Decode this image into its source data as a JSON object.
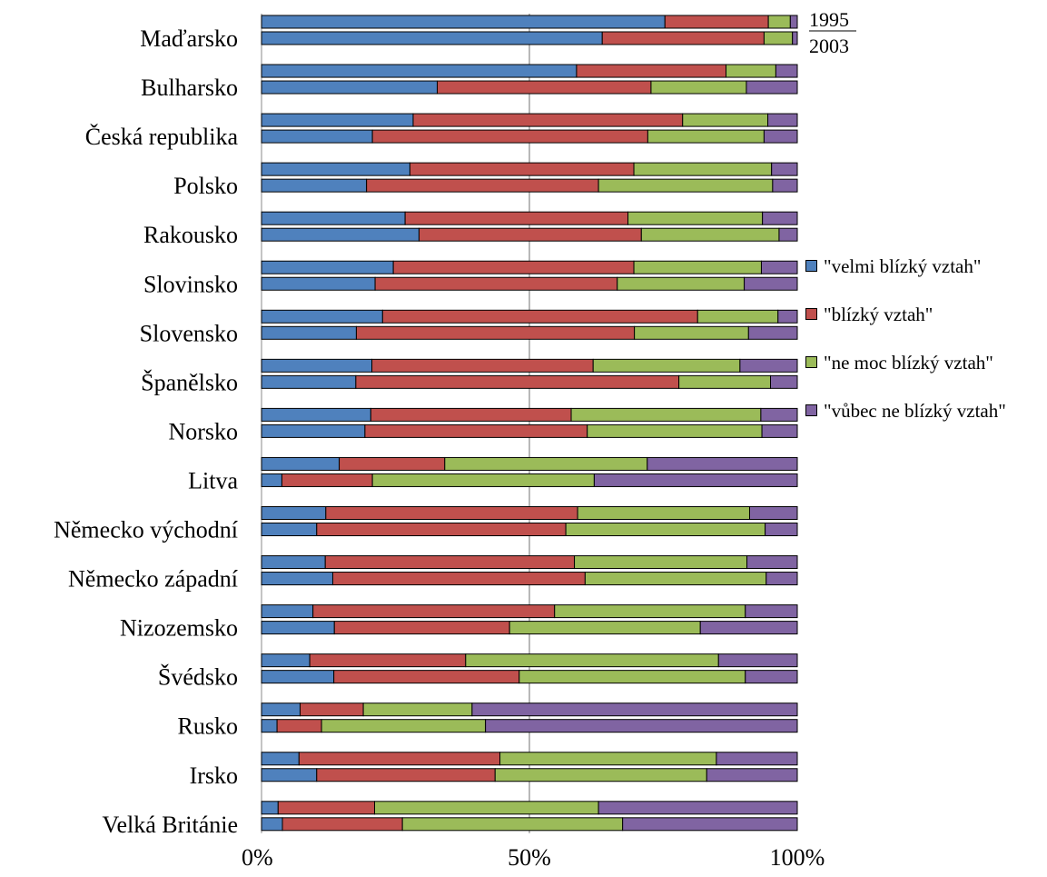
{
  "chart_data": {
    "type": "bar",
    "orientation": "horizontal",
    "stacked": "100%",
    "year_labels": [
      "1995",
      "2003"
    ],
    "x_ticks": [
      "0%",
      "50%",
      "100%"
    ],
    "xlim": [
      0,
      100
    ],
    "grid": "vertical line at 50%",
    "legend_placement": "right",
    "colors": {
      "velmi": "#4f81bd",
      "blizky": "#c0504d",
      "nemoc": "#9bbb59",
      "vubec": "#8064a2"
    },
    "series": [
      {
        "name": "\"velmi blízký vztah\"",
        "color": "#4f81bd"
      },
      {
        "name": "\"blízký vztah\"",
        "color": "#c0504d"
      },
      {
        "name": "\"ne moc blízký vztah\"",
        "color": "#9bbb59"
      },
      {
        "name": "\"vůbec ne blízký vztah\"",
        "color": "#8064a2"
      }
    ],
    "categories": [
      {
        "name": "Maďarsko",
        "y1995": [
          75.3,
          19.3,
          4.1,
          1.3
        ],
        "y2003": [
          63.6,
          30.2,
          5.3,
          0.9
        ]
      },
      {
        "name": "Bulharsko",
        "y1995": [
          58.8,
          27.9,
          9.3,
          4.0
        ],
        "y2003": [
          32.8,
          39.9,
          17.8,
          9.5
        ]
      },
      {
        "name": "Česká republika",
        "y1995": [
          28.3,
          50.3,
          15.9,
          5.5
        ],
        "y2003": [
          20.7,
          51.4,
          21.7,
          6.2
        ]
      },
      {
        "name": "Polsko",
        "y1995": [
          27.7,
          41.8,
          25.7,
          4.8
        ],
        "y2003": [
          19.6,
          43.3,
          32.5,
          4.6
        ]
      },
      {
        "name": "Rakousko",
        "y1995": [
          26.8,
          41.6,
          25.1,
          6.5
        ],
        "y2003": [
          29.4,
          41.5,
          25.7,
          3.4
        ]
      },
      {
        "name": "Slovinsko",
        "y1995": [
          24.6,
          44.9,
          23.8,
          6.7
        ],
        "y2003": [
          21.2,
          45.2,
          23.7,
          9.9
        ]
      },
      {
        "name": "Slovensko",
        "y1995": [
          22.6,
          58.8,
          15.0,
          3.6
        ],
        "y2003": [
          17.7,
          51.9,
          21.3,
          9.1
        ]
      },
      {
        "name": "Španělsko",
        "y1995": [
          20.6,
          41.3,
          27.4,
          10.7
        ],
        "y2003": [
          17.6,
          60.3,
          17.1,
          5.0
        ]
      },
      {
        "name": "Norsko",
        "y1995": [
          20.4,
          37.4,
          35.4,
          6.8
        ],
        "y2003": [
          19.3,
          41.5,
          32.6,
          6.6
        ]
      },
      {
        "name": "Litva",
        "y1995": [
          14.5,
          19.7,
          37.8,
          28.0
        ],
        "y2003": [
          3.8,
          16.9,
          41.4,
          37.9
        ]
      },
      {
        "name": "Německo východní",
        "y1995": [
          12.0,
          47.0,
          32.1,
          8.9
        ],
        "y2003": [
          10.3,
          46.5,
          37.2,
          6.0
        ]
      },
      {
        "name": "Německo západní",
        "y1995": [
          11.9,
          46.5,
          32.2,
          9.4
        ],
        "y2003": [
          13.3,
          47.1,
          33.8,
          5.8
        ]
      },
      {
        "name": "Nizozemsko",
        "y1995": [
          9.6,
          45.1,
          35.6,
          9.7
        ],
        "y2003": [
          13.6,
          32.7,
          35.6,
          18.1
        ]
      },
      {
        "name": "Švédsko",
        "y1995": [
          9.0,
          29.1,
          47.2,
          14.7
        ],
        "y2003": [
          13.5,
          34.6,
          42.2,
          9.7
        ]
      },
      {
        "name": "Rusko",
        "y1995": [
          7.2,
          11.8,
          20.3,
          60.7
        ],
        "y2003": [
          2.9,
          8.3,
          30.6,
          58.2
        ]
      },
      {
        "name": "Irsko",
        "y1995": [
          7.0,
          37.5,
          40.4,
          15.1
        ],
        "y2003": [
          10.3,
          33.3,
          39.5,
          16.9
        ]
      },
      {
        "name": "Velká Británie",
        "y1995": [
          3.1,
          18.0,
          41.8,
          37.1
        ],
        "y2003": [
          3.9,
          22.4,
          41.1,
          32.6
        ]
      }
    ]
  }
}
